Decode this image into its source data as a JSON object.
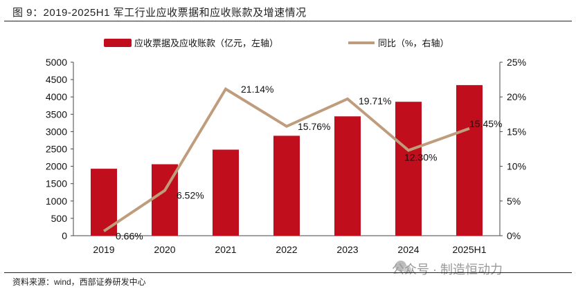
{
  "title": "图 9：2019-2025H1 军工行业应收票据和应收账款及增速情况",
  "source": "资料来源：wind，西部证券研发中心",
  "watermark": "公众号 · 制造恒动力",
  "chart_data": {
    "type": "bar+line",
    "categories": [
      "2019",
      "2020",
      "2021",
      "2022",
      "2023",
      "2024",
      "2025H1"
    ],
    "series": [
      {
        "name": "应收票据及应收账款（亿元，左轴）",
        "type": "bar",
        "axis": "left",
        "color": "#C00E1D",
        "values": [
          1930,
          2060,
          2480,
          2880,
          3440,
          3860,
          4340
        ]
      },
      {
        "name": "同比（%，右轴）",
        "type": "line",
        "axis": "right",
        "color": "#BF9C7C",
        "values": [
          0.66,
          6.52,
          21.14,
          15.76,
          19.71,
          12.3,
          15.45
        ],
        "labels": [
          "0.66%",
          "6.52%",
          "21.14%",
          "15.76%",
          "19.71%",
          "12.30%",
          "15.45%"
        ]
      }
    ],
    "left_axis": {
      "range": [
        0,
        5000
      ],
      "ticks": [
        "0",
        "500",
        "1000",
        "1500",
        "2000",
        "2500",
        "3000",
        "3500",
        "4000",
        "4500",
        "5000"
      ]
    },
    "right_axis": {
      "range": [
        0,
        25
      ],
      "ticks": [
        "0%",
        "5%",
        "10%",
        "15%",
        "20%",
        "25%"
      ]
    },
    "legend": "top",
    "grid": false
  }
}
